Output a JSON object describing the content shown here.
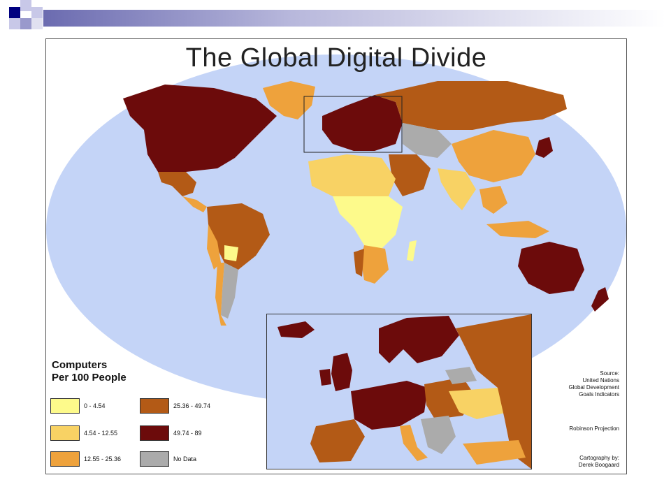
{
  "slide": {
    "title": "The Global Digital Divide"
  },
  "legend": {
    "title_line1": "Computers",
    "title_line2": "Per 100 People",
    "items": [
      {
        "label": "0 - 4.54",
        "color": "#fdfa8b"
      },
      {
        "label": "4.54 - 12.55",
        "color": "#f8d264"
      },
      {
        "label": "12.55 - 25.36",
        "color": "#eea23c"
      },
      {
        "label": "25.36 - 49.74",
        "color": "#b35a16"
      },
      {
        "label": "49.74 - 89",
        "color": "#6c0b0b"
      },
      {
        "label": "No Data",
        "color": "#ababab"
      }
    ]
  },
  "source": {
    "line1": "Source:",
    "line2": "United Nations",
    "line3": "Global Development",
    "line4": "Goals Indicators"
  },
  "projection": "Robinson Projection",
  "credit": {
    "line1": "Cartography by:",
    "line2": "Derek Boogaard"
  },
  "colors": {
    "ocean": "#c4d4f7",
    "deco_dark": "#000080",
    "deco_light": "#9999cc"
  }
}
